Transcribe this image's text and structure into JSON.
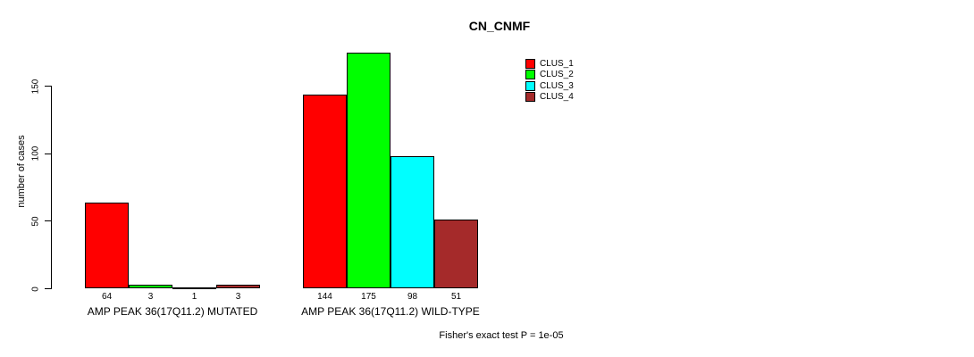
{
  "title": "CN_CNMF",
  "footer": "Fisher's exact test P = 1e-05",
  "chart_data": {
    "type": "bar",
    "title": "CN_CNMF",
    "xlabel": "",
    "ylabel": "number of cases",
    "ylim": [
      0,
      178
    ],
    "yticks": [
      0,
      50,
      100,
      150
    ],
    "grid": false,
    "legend_position": "top-right",
    "annotation": "Fisher's exact test P = 1e-05",
    "series": [
      {
        "name": "CLUS_1",
        "color": "#FF0000"
      },
      {
        "name": "CLUS_2",
        "color": "#00FF00"
      },
      {
        "name": "CLUS_3",
        "color": "#00FFFF"
      },
      {
        "name": "CLUS_4",
        "color": "#A52A2A"
      }
    ],
    "groups": [
      {
        "label": "AMP PEAK 36(17Q11.2) MUTATED",
        "values": [
          64,
          3,
          1,
          3
        ]
      },
      {
        "label": "AMP PEAK 36(17Q11.2) WILD-TYPE",
        "values": [
          144,
          175,
          98,
          51
        ]
      }
    ]
  }
}
